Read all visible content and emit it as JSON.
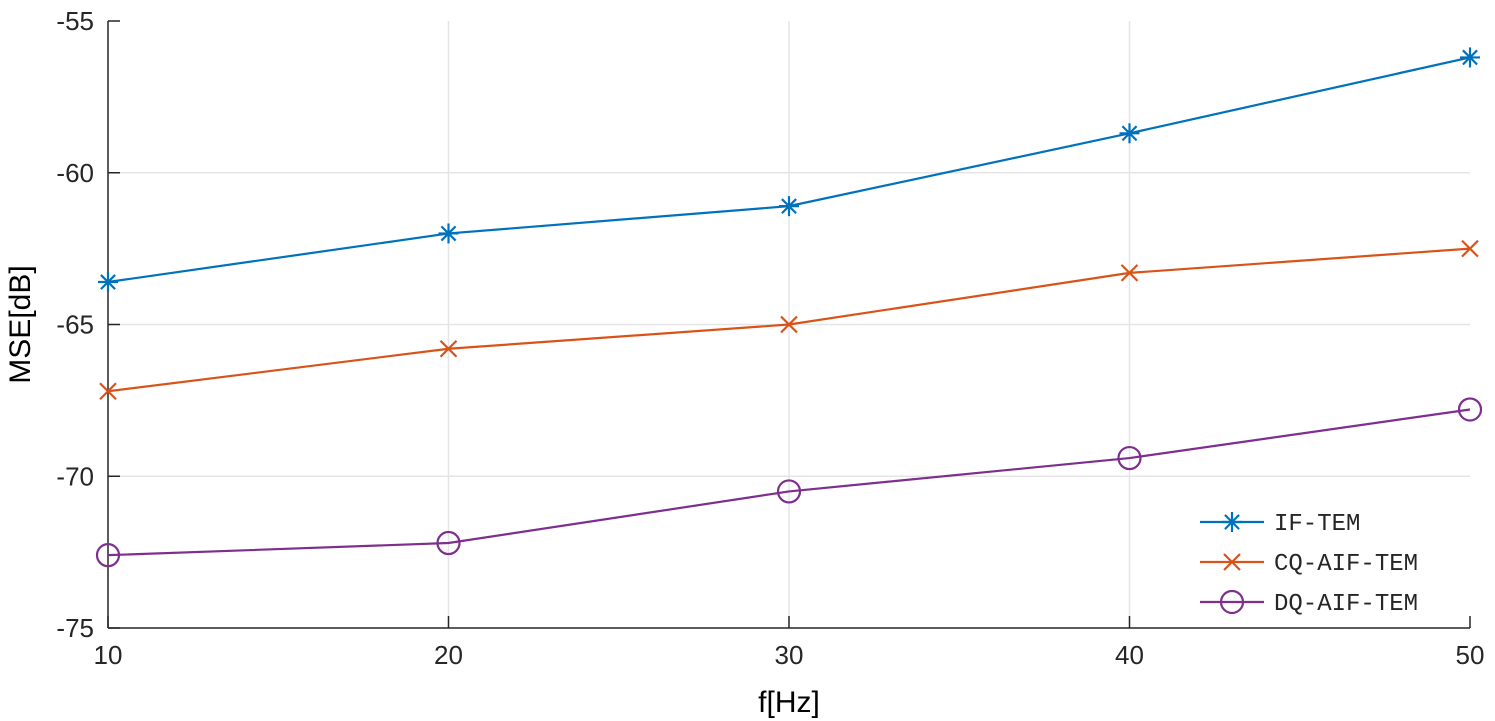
{
  "chart_data": {
    "type": "line",
    "title": "",
    "xlabel": "f[Hz]",
    "ylabel": "MSE[dB]",
    "x": [
      10,
      20,
      30,
      40,
      50
    ],
    "xlim": [
      10,
      50
    ],
    "ylim": [
      -75,
      -55
    ],
    "xticks": [
      10,
      20,
      30,
      40,
      50
    ],
    "yticks": [
      -75,
      -70,
      -65,
      -60,
      -55
    ],
    "grid": true,
    "legend_position": "bottom-right",
    "series": [
      {
        "name": "IF-TEM",
        "values": [
          -63.6,
          -62.0,
          -61.1,
          -58.7,
          -56.2
        ],
        "color": "#0072BD",
        "marker": "asterisk"
      },
      {
        "name": "CQ-AIF-TEM",
        "values": [
          -67.2,
          -65.8,
          -65.0,
          -63.3,
          -62.5
        ],
        "color": "#D95319",
        "marker": "x"
      },
      {
        "name": "DQ-AIF-TEM",
        "values": [
          -72.6,
          -72.2,
          -70.5,
          -69.4,
          -67.8
        ],
        "color": "#7E2F8E",
        "marker": "circle"
      }
    ]
  }
}
